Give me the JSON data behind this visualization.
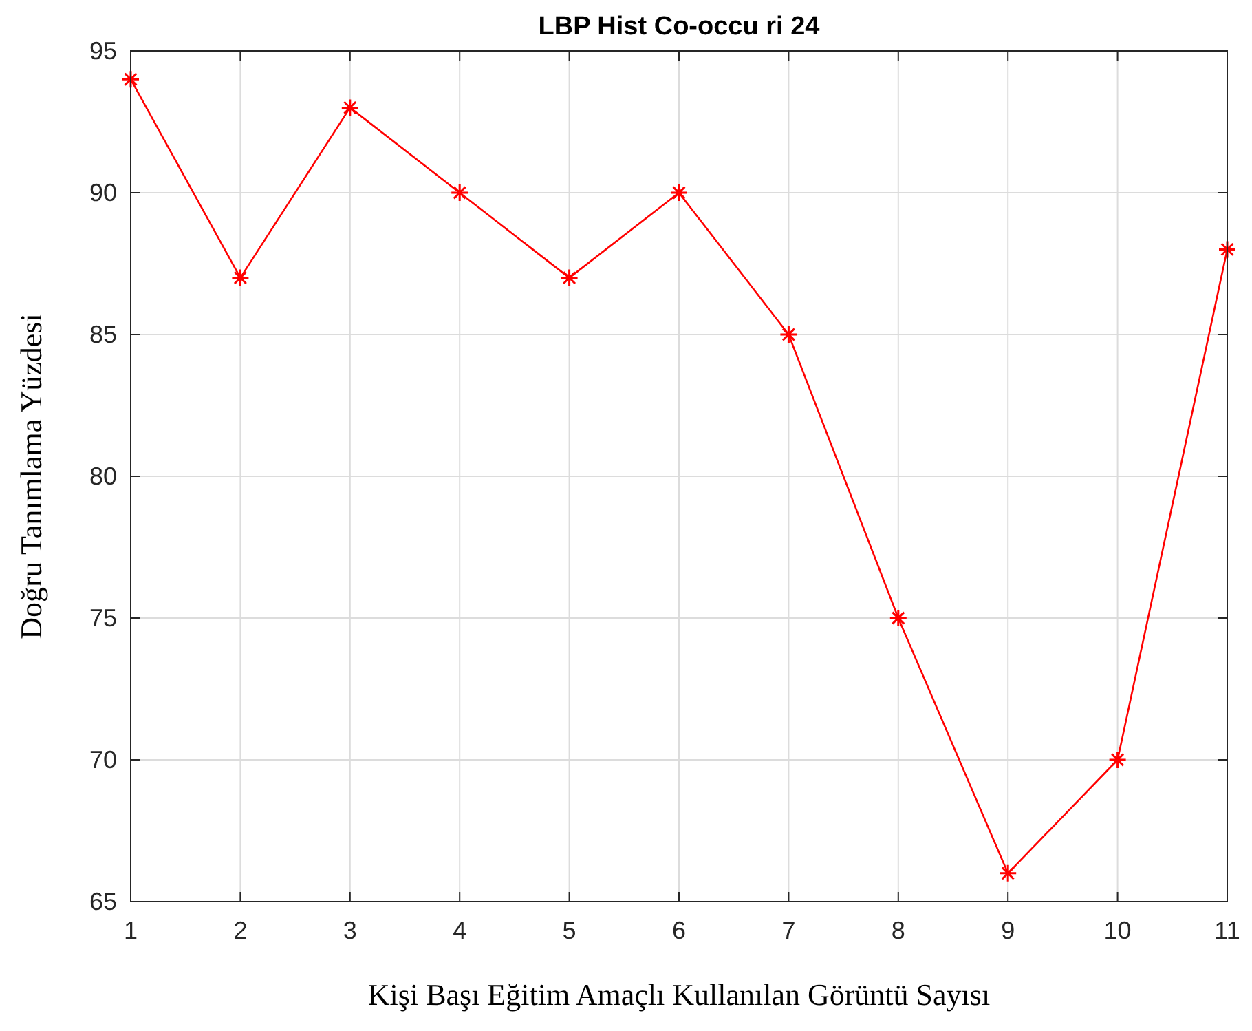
{
  "chart_data": {
    "type": "line",
    "title": "LBP Hist Co-occu ri 24",
    "xlabel": "Kişi Başı Eğitim Amaçlı Kullanılan Görüntü Sayısı",
    "ylabel": "Doğru Tanımlama Yüzdesi",
    "x": [
      1,
      2,
      3,
      4,
      5,
      6,
      7,
      8,
      9,
      10,
      11
    ],
    "series": [
      {
        "color": "#ff0000",
        "values": [
          94,
          87,
          93,
          90,
          87,
          90,
          85,
          75,
          66,
          70,
          88
        ]
      }
    ],
    "xlim": [
      1,
      11
    ],
    "xticks": [
      1,
      2,
      3,
      4,
      5,
      6,
      7,
      8,
      9,
      10,
      11
    ],
    "ylim": [
      65,
      95
    ],
    "yticks": [
      65,
      70,
      75,
      80,
      85,
      90,
      95
    ],
    "grid": true,
    "marker": "cross",
    "line_style": "solid"
  }
}
